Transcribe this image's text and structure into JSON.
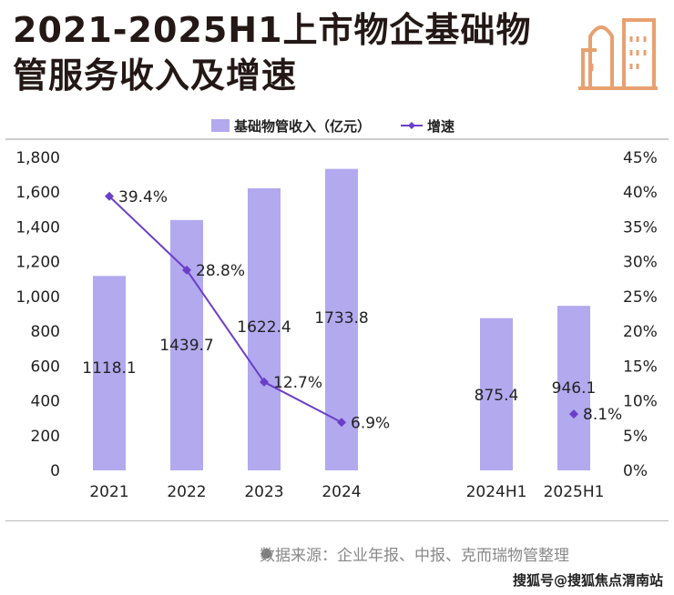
{
  "title_line1": "2021-2025H1上市物企基础物",
  "title_line2": "管服务收入及增速",
  "source": "数据来源：企业年报、中报、克而瑞物管整理",
  "watermark": "搜狐号@搜狐焦点渭南站",
  "colors": {
    "bar": "#b3a9ef",
    "line": "#6a3fc8",
    "icon": "#e8a070"
  },
  "chart_data": {
    "type": "bar",
    "categories": [
      "2021",
      "2022",
      "2023",
      "2024",
      "2024H1",
      "2025H1"
    ],
    "series": [
      {
        "name": "基础物管收入（亿元）",
        "type": "bar",
        "axis": "left",
        "values": [
          1118.1,
          1439.7,
          1622.4,
          1733.8,
          875.4,
          946.1
        ],
        "labels": [
          "1118.1",
          "1439.7",
          "1622.4",
          "1733.8",
          "875.4",
          "946.1"
        ]
      },
      {
        "name": "增速",
        "type": "line",
        "axis": "right",
        "values": [
          39.4,
          28.8,
          12.7,
          6.9,
          null,
          8.1
        ],
        "labels": [
          "39.4%",
          "28.8%",
          "12.7%",
          "6.9%",
          "",
          "8.1%"
        ]
      }
    ],
    "ylim_left": [
      0,
      1800
    ],
    "yticks_left": [
      "0",
      "200",
      "400",
      "600",
      "800",
      "1,000",
      "1,200",
      "1,400",
      "1,600",
      "1,800"
    ],
    "ylim_right": [
      0,
      45
    ],
    "yticks_right": [
      "0%",
      "5%",
      "10%",
      "15%",
      "20%",
      "25%",
      "30%",
      "35%",
      "40%",
      "45%"
    ],
    "legend": "top-center"
  }
}
